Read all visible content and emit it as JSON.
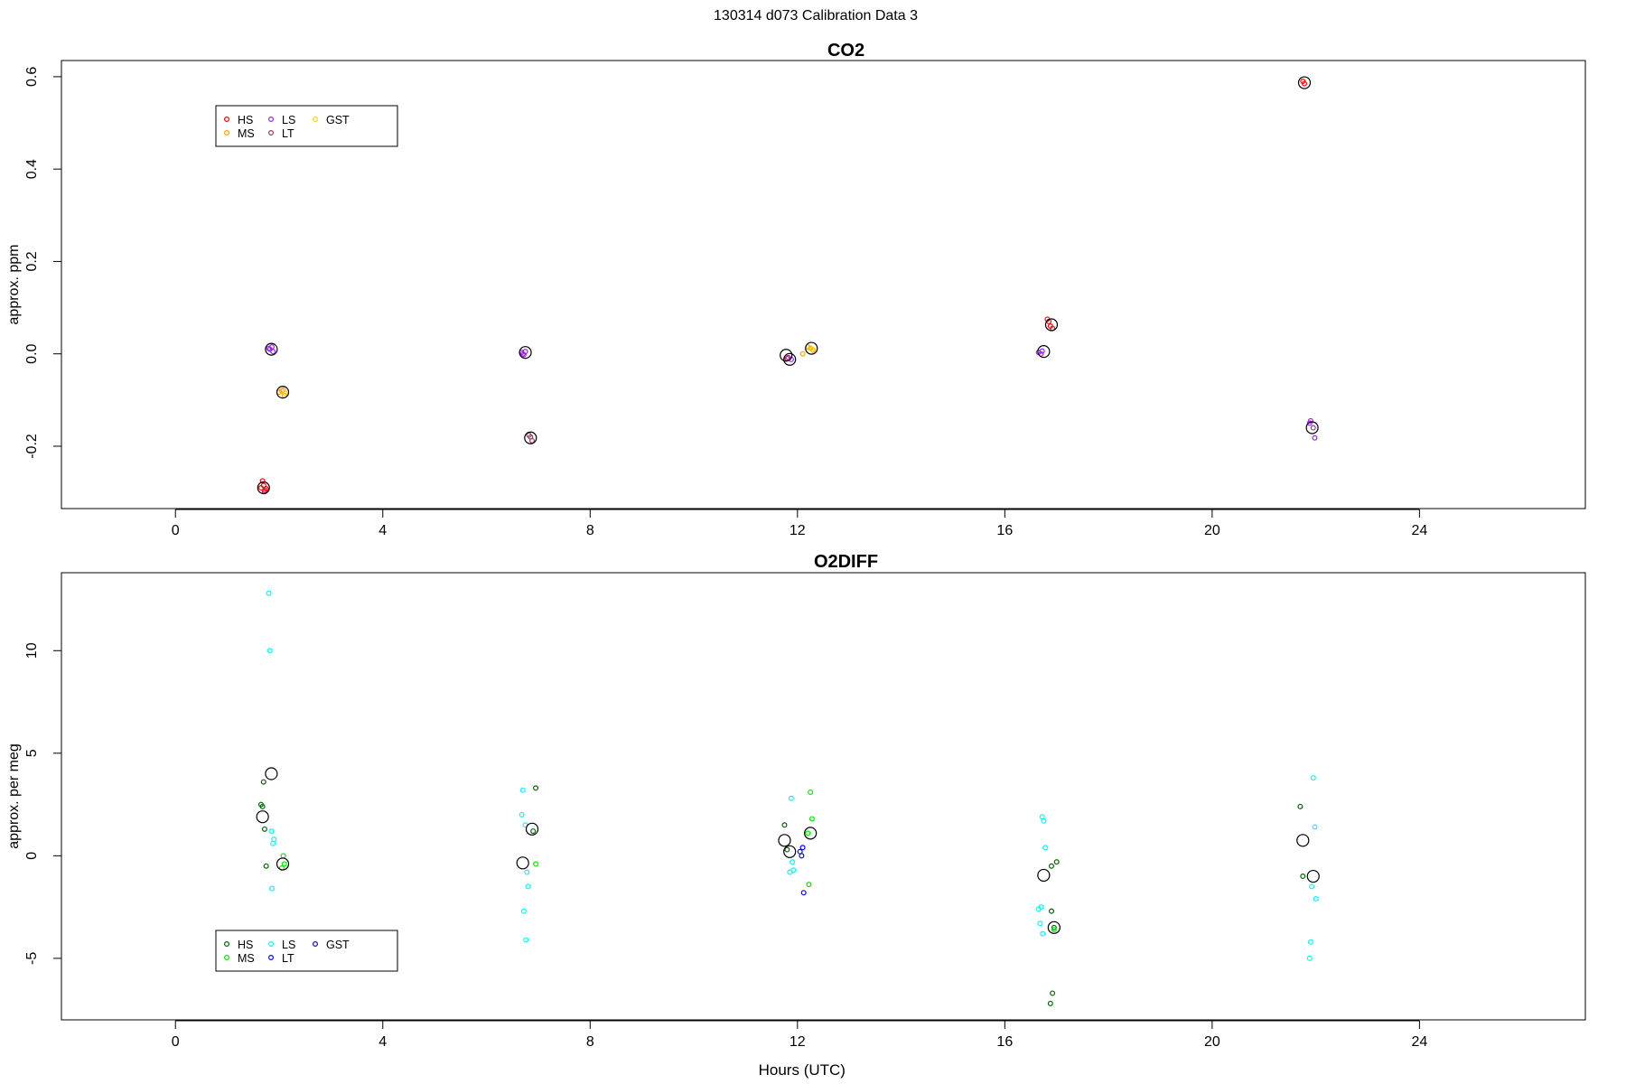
{
  "page": {
    "title": "130314   d073   Calibration Data 3"
  },
  "chart_data": [
    {
      "type": "scatter",
      "title": "CO2",
      "xlabel": "",
      "ylabel": "approx. ppm",
      "xlim": [
        -2.2,
        27.2
      ],
      "ylim": [
        -0.335,
        0.635
      ],
      "xticks": [
        0,
        4,
        8,
        12,
        16,
        20,
        24
      ],
      "yticks": [
        -0.2,
        0.0,
        0.2,
        0.4,
        0.6
      ],
      "ytick_labels": [
        "-0.2",
        "0.0",
        "0.2",
        "0.4",
        "0.6"
      ],
      "legend": {
        "placement": "top-left",
        "entries": [
          {
            "label": "HS",
            "color": "#ff0000"
          },
          {
            "label": "MS",
            "color": "#ffa500"
          },
          {
            "label": "LS",
            "color": "#a020f0"
          },
          {
            "label": "LT",
            "color": "#b03060"
          },
          {
            "label": "GST",
            "color": "#ffd700"
          }
        ]
      },
      "series": [
        {
          "color": "#ff0000",
          "points": [
            [
              1.65,
              -0.29
            ],
            [
              1.7,
              -0.285
            ],
            [
              1.72,
              -0.298
            ],
            [
              1.68,
              -0.275
            ],
            [
              1.75,
              -0.292
            ],
            [
              21.75,
              0.59
            ],
            [
              21.78,
              0.585
            ],
            [
              16.85,
              0.07
            ],
            [
              16.88,
              0.06
            ],
            [
              16.92,
              0.055
            ],
            [
              16.82,
              0.075
            ],
            [
              11.8,
              -0.01
            ]
          ]
        },
        {
          "color": "#ffa500",
          "points": [
            [
              2.05,
              -0.08
            ],
            [
              2.1,
              -0.09
            ],
            [
              2.0,
              -0.083
            ],
            [
              2.08,
              -0.078
            ],
            [
              12.25,
              0.012
            ],
            [
              12.3,
              0.008
            ],
            [
              12.2,
              0.015
            ],
            [
              12.1,
              0.0
            ]
          ]
        },
        {
          "color": "#a020f0",
          "points": [
            [
              1.82,
              0.01
            ],
            [
              1.86,
              0.015
            ],
            [
              1.88,
              0.005
            ],
            [
              1.8,
              0.012
            ],
            [
              6.7,
              0.0
            ],
            [
              6.75,
              0.005
            ],
            [
              6.72,
              -0.002
            ],
            [
              6.68,
              0.003
            ],
            [
              11.88,
              -0.012
            ],
            [
              11.82,
              -0.008
            ],
            [
              16.65,
              0.003
            ],
            [
              16.7,
              0.0
            ],
            [
              16.72,
              0.006
            ],
            [
              21.9,
              -0.145
            ],
            [
              21.95,
              -0.16
            ],
            [
              21.88,
              -0.15
            ],
            [
              21.98,
              -0.182
            ]
          ]
        },
        {
          "color": "#b03060",
          "points": [
            [
              6.85,
              -0.18
            ],
            [
              6.88,
              -0.188
            ],
            [
              6.82,
              -0.176
            ],
            [
              1.73,
              -0.295
            ]
          ]
        },
        {
          "color": "#ffd700",
          "points": [
            [
              2.12,
              -0.085
            ],
            [
              12.28,
              0.01
            ]
          ]
        }
      ],
      "means": [
        [
          1.7,
          -0.29
        ],
        [
          2.07,
          -0.083
        ],
        [
          1.85,
          0.01
        ],
        [
          6.75,
          0.003
        ],
        [
          6.85,
          -0.182
        ],
        [
          11.78,
          -0.003
        ],
        [
          11.85,
          -0.012
        ],
        [
          12.27,
          0.012
        ],
        [
          16.75,
          0.005
        ],
        [
          16.9,
          0.063
        ],
        [
          21.78,
          0.587
        ],
        [
          21.93,
          -0.16
        ]
      ]
    },
    {
      "type": "scatter",
      "title": "O2DIFF",
      "xlabel": "Hours (UTC)",
      "ylabel": "approx. per meg",
      "xlim": [
        -2.2,
        27.2
      ],
      "ylim": [
        -8.0,
        13.8
      ],
      "xticks": [
        0,
        4,
        8,
        12,
        16,
        20,
        24
      ],
      "yticks": [
        -5,
        0,
        5,
        10
      ],
      "ytick_labels": [
        "-5",
        "0",
        "5",
        "10"
      ],
      "legend": {
        "placement": "bottom-left",
        "entries": [
          {
            "label": "HS",
            "color": "#006400"
          },
          {
            "label": "MS",
            "color": "#00ee00"
          },
          {
            "label": "LS",
            "color": "#00ffff"
          },
          {
            "label": "LT",
            "color": "#0000ff"
          },
          {
            "label": "GST",
            "color": "#1010a0"
          }
        ]
      },
      "series": [
        {
          "color": "#006400",
          "points": [
            [
              1.7,
              3.6
            ],
            [
              1.65,
              2.5
            ],
            [
              1.68,
              2.4
            ],
            [
              1.72,
              1.3
            ],
            [
              1.75,
              -0.5
            ],
            [
              6.95,
              3.3
            ],
            [
              6.9,
              1.2
            ],
            [
              11.75,
              1.5
            ],
            [
              11.8,
              0.3
            ],
            [
              16.9,
              -2.7
            ],
            [
              16.95,
              -3.5
            ],
            [
              17.0,
              -0.3
            ],
            [
              16.92,
              -6.7
            ],
            [
              16.88,
              -7.2
            ],
            [
              21.7,
              2.4
            ],
            [
              21.75,
              -1.0
            ],
            [
              16.9,
              -0.5
            ]
          ]
        },
        {
          "color": "#00ee00",
          "points": [
            [
              2.1,
              -0.4
            ],
            [
              2.05,
              -0.6
            ],
            [
              2.08,
              0.0
            ],
            [
              6.95,
              -0.4
            ],
            [
              12.25,
              3.1
            ],
            [
              12.28,
              1.8
            ],
            [
              12.2,
              1.1
            ],
            [
              12.22,
              -1.4
            ],
            [
              16.95,
              -3.6
            ]
          ]
        },
        {
          "color": "#00ffff",
          "points": [
            [
              1.8,
              12.8
            ],
            [
              1.82,
              10.0
            ],
            [
              1.85,
              1.2
            ],
            [
              1.9,
              0.8
            ],
            [
              1.88,
              0.6
            ],
            [
              1.86,
              -1.6
            ],
            [
              6.7,
              3.2
            ],
            [
              6.68,
              2.0
            ],
            [
              6.75,
              1.5
            ],
            [
              6.78,
              -0.8
            ],
            [
              6.8,
              -1.5
            ],
            [
              6.72,
              -2.7
            ],
            [
              6.76,
              -4.1
            ],
            [
              11.88,
              2.8
            ],
            [
              11.9,
              -0.3
            ],
            [
              11.85,
              -0.8
            ],
            [
              11.92,
              -0.7
            ],
            [
              16.72,
              1.9
            ],
            [
              16.75,
              1.7
            ],
            [
              16.78,
              0.4
            ],
            [
              16.7,
              -2.5
            ],
            [
              16.65,
              -2.6
            ],
            [
              16.68,
              -3.3
            ],
            [
              16.73,
              -3.8
            ],
            [
              21.95,
              3.8
            ],
            [
              21.98,
              1.4
            ],
            [
              21.92,
              -1.5
            ],
            [
              22.0,
              -2.1
            ],
            [
              21.9,
              -4.2
            ],
            [
              21.88,
              -5.0
            ]
          ]
        },
        {
          "color": "#0000ff",
          "points": [
            [
              12.1,
              0.4
            ],
            [
              12.08,
              0.0
            ],
            [
              12.12,
              -1.8
            ]
          ]
        },
        {
          "color": "#1010a0",
          "points": [
            [
              12.05,
              0.2
            ]
          ]
        }
      ],
      "means": [
        [
          1.85,
          4.0
        ],
        [
          1.68,
          1.9
        ],
        [
          2.07,
          -0.4
        ],
        [
          6.7,
          -0.35
        ],
        [
          6.88,
          1.3
        ],
        [
          11.75,
          0.75
        ],
        [
          11.85,
          0.2
        ],
        [
          12.25,
          1.1
        ],
        [
          16.75,
          -0.95
        ],
        [
          16.95,
          -3.5
        ],
        [
          21.75,
          0.75
        ],
        [
          21.95,
          -1.0
        ]
      ]
    }
  ]
}
